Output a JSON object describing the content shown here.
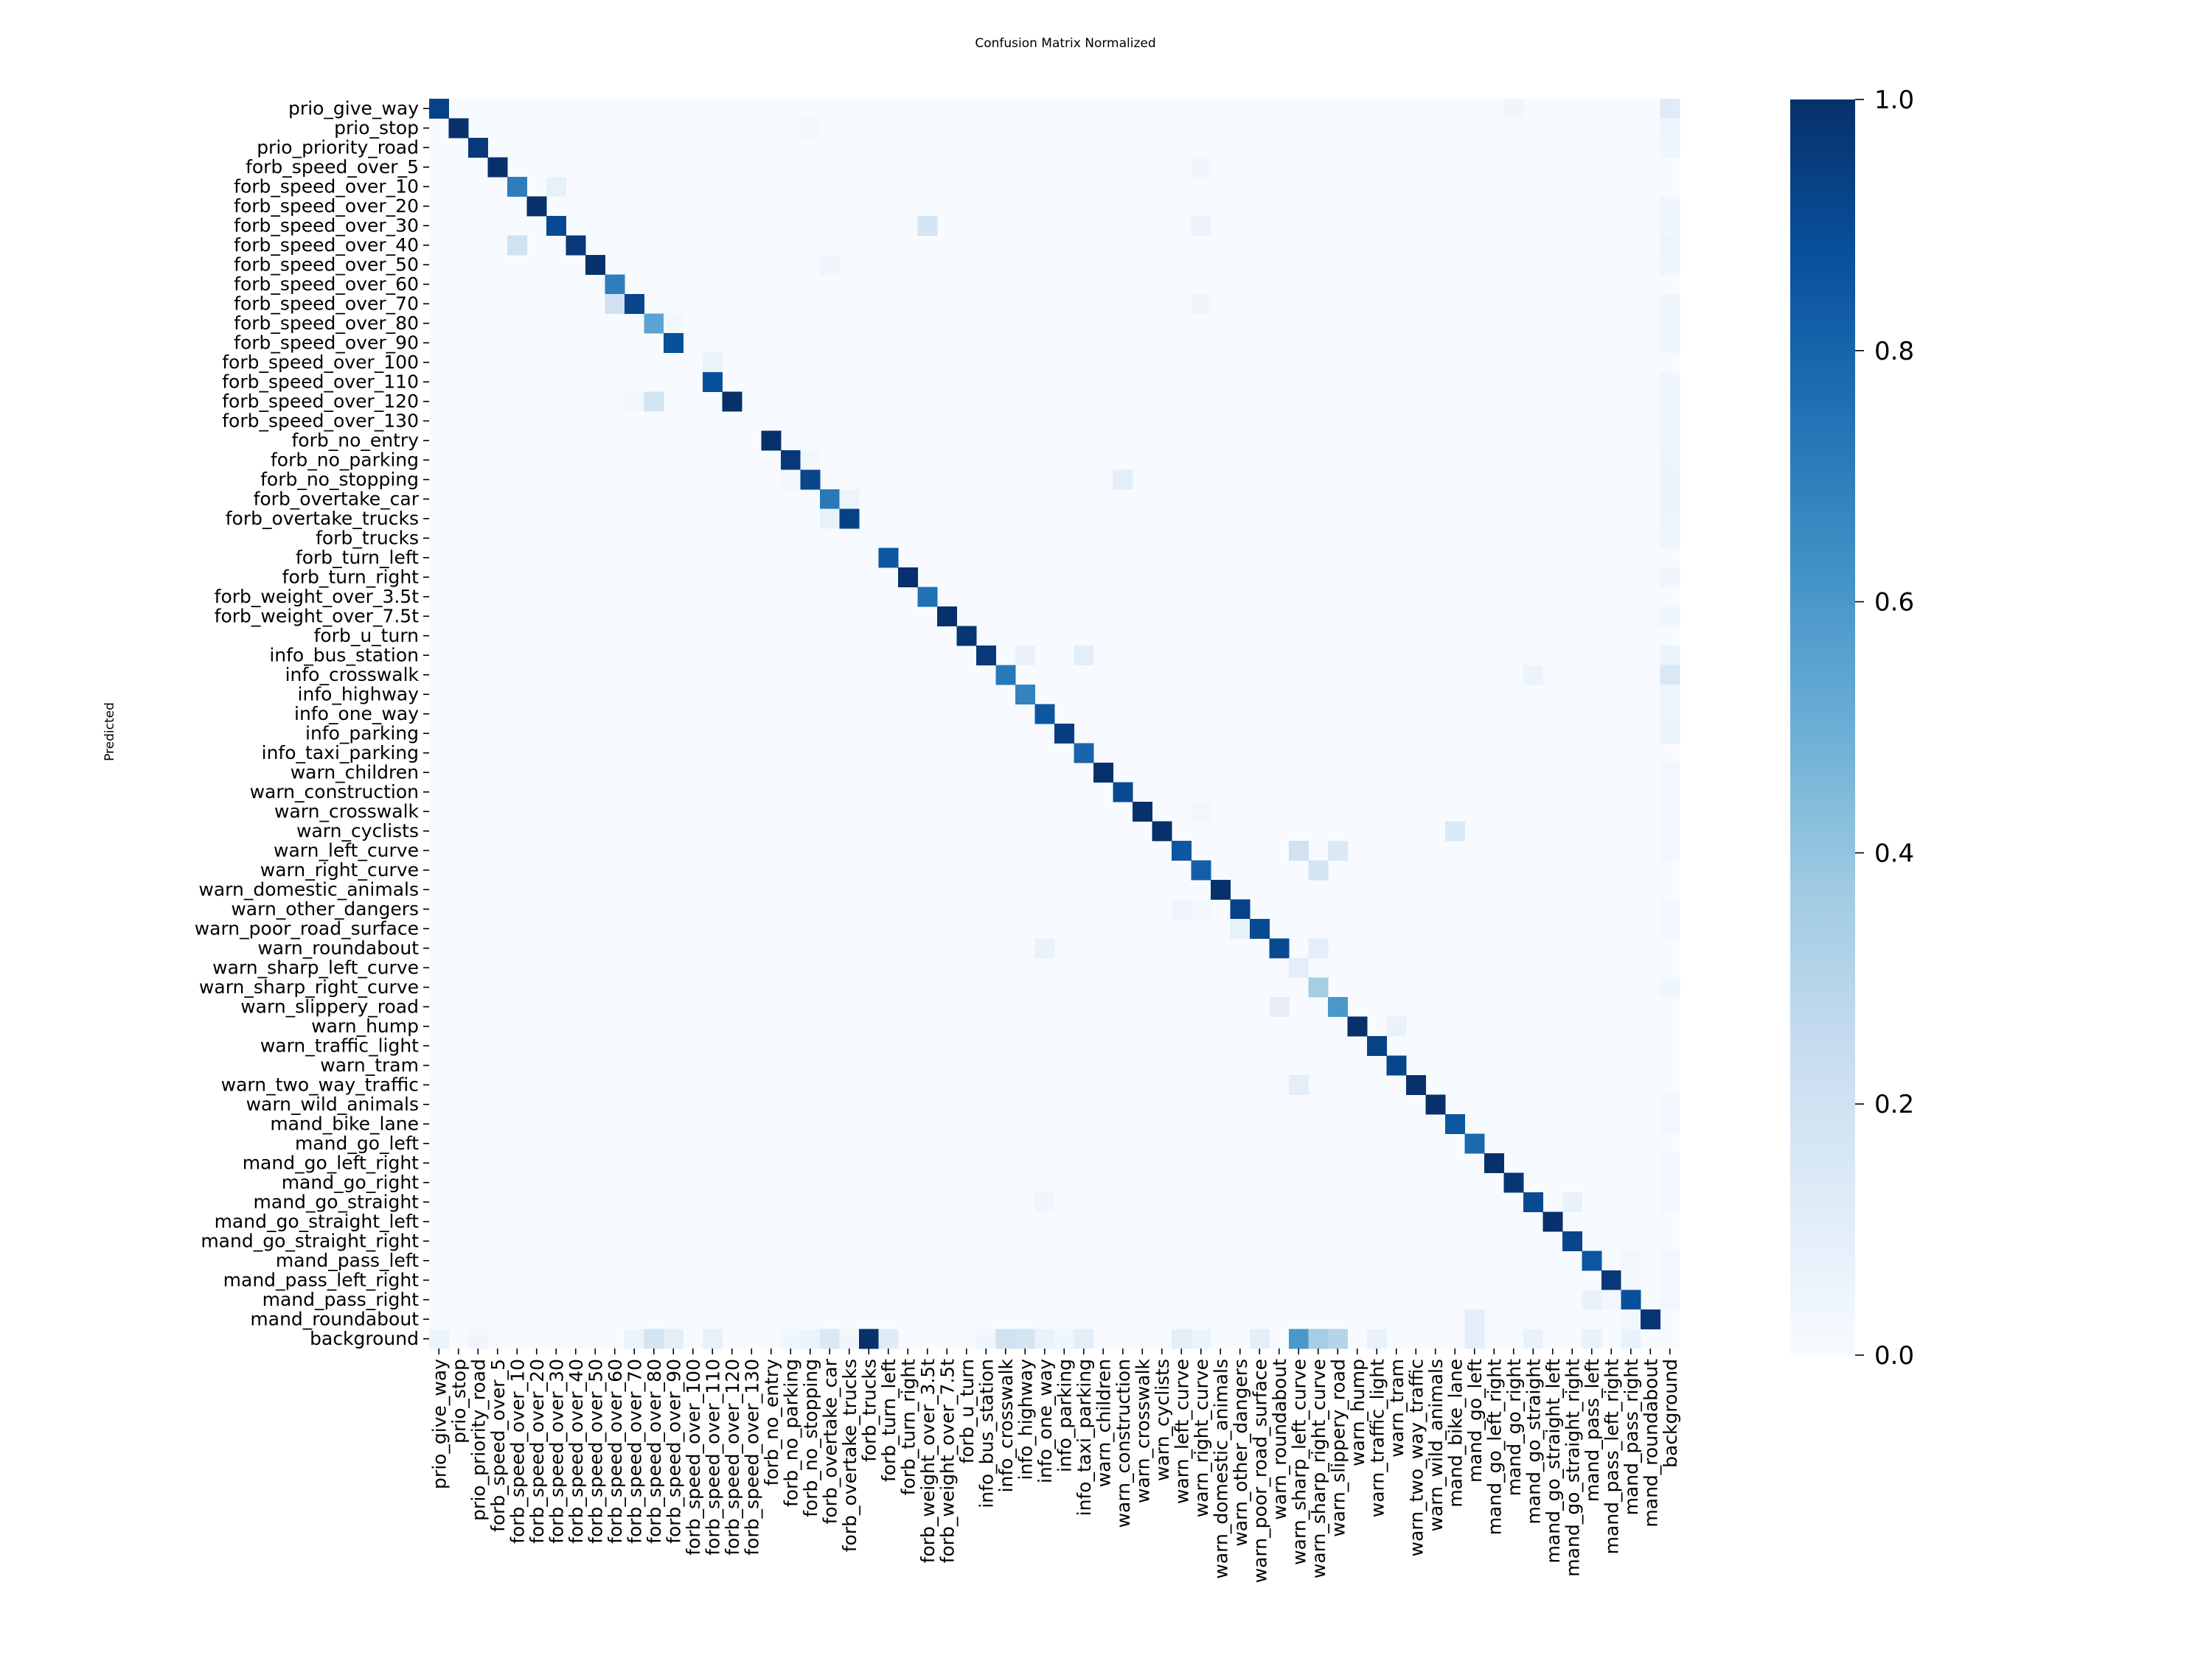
{
  "chart_data": {
    "type": "heatmap",
    "title": "Confusion Matrix Normalized",
    "ylabel": "Predicted",
    "xlabel": "",
    "colormap": "Blues",
    "colormap_stops": [
      "#f7fbff",
      "#deebf7",
      "#c6dbef",
      "#9ecae1",
      "#6baed6",
      "#4292c6",
      "#2171b5",
      "#08519c",
      "#08306b"
    ],
    "value_range": [
      0.0,
      1.0
    ],
    "colorbar_ticks": [
      "0.0",
      "0.2",
      "0.4",
      "0.6",
      "0.8",
      "1.0"
    ],
    "labels": [
      "prio_give_way",
      "prio_stop",
      "prio_priority_road",
      "forb_speed_over_5",
      "forb_speed_over_10",
      "forb_speed_over_20",
      "forb_speed_over_30",
      "forb_speed_over_40",
      "forb_speed_over_50",
      "forb_speed_over_60",
      "forb_speed_over_70",
      "forb_speed_over_80",
      "forb_speed_over_90",
      "forb_speed_over_100",
      "forb_speed_over_110",
      "forb_speed_over_120",
      "forb_speed_over_130",
      "forb_no_entry",
      "forb_no_parking",
      "forb_no_stopping",
      "forb_overtake_car",
      "forb_overtake_trucks",
      "forb_trucks",
      "forb_turn_left",
      "forb_turn_right",
      "forb_weight_over_3.5t",
      "forb_weight_over_7.5t",
      "forb_u_turn",
      "info_bus_station",
      "info_crosswalk",
      "info_highway",
      "info_one_way",
      "info_parking",
      "info_taxi_parking",
      "warn_children",
      "warn_construction",
      "warn_crosswalk",
      "warn_cyclists",
      "warn_left_curve",
      "warn_right_curve",
      "warn_domestic_animals",
      "warn_other_dangers",
      "warn_poor_road_surface",
      "warn_roundabout",
      "warn_sharp_left_curve",
      "warn_sharp_right_curve",
      "warn_slippery_road",
      "warn_hump",
      "warn_traffic_light",
      "warn_tram",
      "warn_two_way_traffic",
      "warn_wild_animals",
      "mand_bike_lane",
      "mand_go_left",
      "mand_go_left_right",
      "mand_go_right",
      "mand_go_straight",
      "mand_go_straight_left",
      "mand_go_straight_right",
      "mand_pass_left",
      "mand_pass_left_right",
      "mand_pass_right",
      "mand_roundabout",
      "background"
    ],
    "cells_format": "[predicted_row_index, true_col_index, value]; unlisted cells are 0",
    "cells": [
      [
        0,
        0,
        0.93
      ],
      [
        0,
        55,
        0.04
      ],
      [
        0,
        63,
        0.12
      ],
      [
        1,
        1,
        1.0
      ],
      [
        1,
        19,
        0.03
      ],
      [
        1,
        63,
        0.05
      ],
      [
        2,
        2,
        0.97
      ],
      [
        2,
        63,
        0.04
      ],
      [
        3,
        3,
        1.0
      ],
      [
        3,
        39,
        0.04
      ],
      [
        4,
        4,
        0.7
      ],
      [
        4,
        6,
        0.08
      ],
      [
        5,
        5,
        1.0
      ],
      [
        5,
        63,
        0.04
      ],
      [
        6,
        6,
        0.9
      ],
      [
        6,
        25,
        0.17
      ],
      [
        6,
        39,
        0.06
      ],
      [
        6,
        63,
        0.04
      ],
      [
        7,
        4,
        0.2
      ],
      [
        7,
        7,
        0.97
      ],
      [
        7,
        63,
        0.05
      ],
      [
        8,
        8,
        1.0
      ],
      [
        8,
        20,
        0.04
      ],
      [
        8,
        63,
        0.04
      ],
      [
        9,
        9,
        0.7
      ],
      [
        10,
        9,
        0.2
      ],
      [
        10,
        10,
        0.92
      ],
      [
        10,
        39,
        0.04
      ],
      [
        10,
        63,
        0.04
      ],
      [
        11,
        11,
        0.55
      ],
      [
        11,
        12,
        0.03
      ],
      [
        11,
        63,
        0.04
      ],
      [
        12,
        12,
        0.88
      ],
      [
        12,
        63,
        0.04
      ],
      [
        13,
        14,
        0.06
      ],
      [
        14,
        14,
        0.88
      ],
      [
        14,
        63,
        0.04
      ],
      [
        15,
        10,
        0.03
      ],
      [
        15,
        11,
        0.18
      ],
      [
        15,
        15,
        1.0
      ],
      [
        15,
        63,
        0.04
      ],
      [
        16,
        63,
        0.04
      ],
      [
        17,
        17,
        1.0
      ],
      [
        17,
        63,
        0.04
      ],
      [
        18,
        18,
        0.97
      ],
      [
        18,
        19,
        0.03
      ],
      [
        18,
        63,
        0.05
      ],
      [
        19,
        18,
        0.03
      ],
      [
        19,
        19,
        0.92
      ],
      [
        19,
        35,
        0.1
      ],
      [
        19,
        63,
        0.06
      ],
      [
        20,
        20,
        0.72
      ],
      [
        20,
        21,
        0.05
      ],
      [
        20,
        63,
        0.06
      ],
      [
        21,
        20,
        0.07
      ],
      [
        21,
        21,
        0.93
      ],
      [
        21,
        63,
        0.05
      ],
      [
        22,
        63,
        0.04
      ],
      [
        23,
        23,
        0.85
      ],
      [
        24,
        24,
        1.0
      ],
      [
        24,
        63,
        0.04
      ],
      [
        25,
        25,
        0.75
      ],
      [
        26,
        26,
        1.0
      ],
      [
        26,
        63,
        0.04
      ],
      [
        27,
        27,
        0.98
      ],
      [
        28,
        28,
        0.97
      ],
      [
        28,
        30,
        0.07
      ],
      [
        28,
        33,
        0.1
      ],
      [
        28,
        63,
        0.06
      ],
      [
        29,
        29,
        0.72
      ],
      [
        29,
        56,
        0.06
      ],
      [
        29,
        63,
        0.15
      ],
      [
        30,
        30,
        0.68
      ],
      [
        30,
        63,
        0.05
      ],
      [
        31,
        31,
        0.85
      ],
      [
        31,
        63,
        0.05
      ],
      [
        32,
        32,
        0.95
      ],
      [
        32,
        63,
        0.06
      ],
      [
        33,
        33,
        0.8
      ],
      [
        34,
        34,
        1.0
      ],
      [
        34,
        63,
        0.03
      ],
      [
        35,
        35,
        0.9
      ],
      [
        35,
        63,
        0.03
      ],
      [
        36,
        36,
        1.0
      ],
      [
        36,
        39,
        0.03
      ],
      [
        36,
        63,
        0.03
      ],
      [
        37,
        37,
        1.0
      ],
      [
        37,
        52,
        0.14
      ],
      [
        37,
        63,
        0.03
      ],
      [
        38,
        38,
        0.85
      ],
      [
        38,
        44,
        0.2
      ],
      [
        38,
        46,
        0.14
      ],
      [
        38,
        63,
        0.03
      ],
      [
        39,
        39,
        0.82
      ],
      [
        39,
        45,
        0.18
      ],
      [
        40,
        40,
        1.0
      ],
      [
        41,
        38,
        0.05
      ],
      [
        41,
        39,
        0.03
      ],
      [
        41,
        41,
        0.93
      ],
      [
        41,
        63,
        0.03
      ],
      [
        42,
        41,
        0.08
      ],
      [
        42,
        42,
        0.9
      ],
      [
        42,
        63,
        0.03
      ],
      [
        43,
        31,
        0.07
      ],
      [
        43,
        43,
        0.9
      ],
      [
        43,
        45,
        0.1
      ],
      [
        44,
        44,
        0.1
      ],
      [
        45,
        45,
        0.35
      ],
      [
        45,
        63,
        0.04
      ],
      [
        46,
        43,
        0.1
      ],
      [
        46,
        46,
        0.6
      ],
      [
        47,
        47,
        1.0
      ],
      [
        47,
        49,
        0.07
      ],
      [
        48,
        48,
        0.93
      ],
      [
        49,
        49,
        0.92
      ],
      [
        50,
        44,
        0.1
      ],
      [
        50,
        50,
        1.0
      ],
      [
        51,
        51,
        1.0
      ],
      [
        51,
        63,
        0.03
      ],
      [
        52,
        52,
        0.85
      ],
      [
        52,
        63,
        0.03
      ],
      [
        53,
        53,
        0.78
      ],
      [
        54,
        54,
        1.0
      ],
      [
        54,
        63,
        0.03
      ],
      [
        55,
        55,
        0.98
      ],
      [
        55,
        63,
        0.03
      ],
      [
        56,
        31,
        0.04
      ],
      [
        56,
        56,
        0.9
      ],
      [
        56,
        58,
        0.07
      ],
      [
        56,
        63,
        0.03
      ],
      [
        57,
        57,
        1.0
      ],
      [
        58,
        58,
        0.92
      ],
      [
        59,
        59,
        0.85
      ],
      [
        59,
        61,
        0.03
      ],
      [
        59,
        63,
        0.03
      ],
      [
        60,
        60,
        0.97
      ],
      [
        60,
        61,
        0.03
      ],
      [
        60,
        63,
        0.03
      ],
      [
        61,
        59,
        0.07
      ],
      [
        61,
        60,
        0.03
      ],
      [
        61,
        61,
        0.88
      ],
      [
        61,
        63,
        0.03
      ],
      [
        62,
        53,
        0.09
      ],
      [
        62,
        61,
        0.03
      ],
      [
        62,
        62,
        0.98
      ],
      [
        63,
        0,
        0.06
      ],
      [
        63,
        2,
        0.04
      ],
      [
        63,
        10,
        0.06
      ],
      [
        63,
        11,
        0.18
      ],
      [
        63,
        12,
        0.1
      ],
      [
        63,
        14,
        0.08
      ],
      [
        63,
        18,
        0.04
      ],
      [
        63,
        19,
        0.06
      ],
      [
        63,
        20,
        0.14
      ],
      [
        63,
        21,
        0.04
      ],
      [
        63,
        22,
        1.0
      ],
      [
        63,
        23,
        0.12
      ],
      [
        63,
        28,
        0.04
      ],
      [
        63,
        29,
        0.2
      ],
      [
        63,
        30,
        0.18
      ],
      [
        63,
        31,
        0.07
      ],
      [
        63,
        32,
        0.04
      ],
      [
        63,
        33,
        0.1
      ],
      [
        63,
        38,
        0.1
      ],
      [
        63,
        39,
        0.06
      ],
      [
        63,
        42,
        0.1
      ],
      [
        63,
        44,
        0.6
      ],
      [
        63,
        45,
        0.35
      ],
      [
        63,
        46,
        0.3
      ],
      [
        63,
        48,
        0.07
      ],
      [
        63,
        53,
        0.09
      ],
      [
        63,
        56,
        0.07
      ],
      [
        63,
        59,
        0.07
      ],
      [
        63,
        61,
        0.07
      ]
    ]
  }
}
